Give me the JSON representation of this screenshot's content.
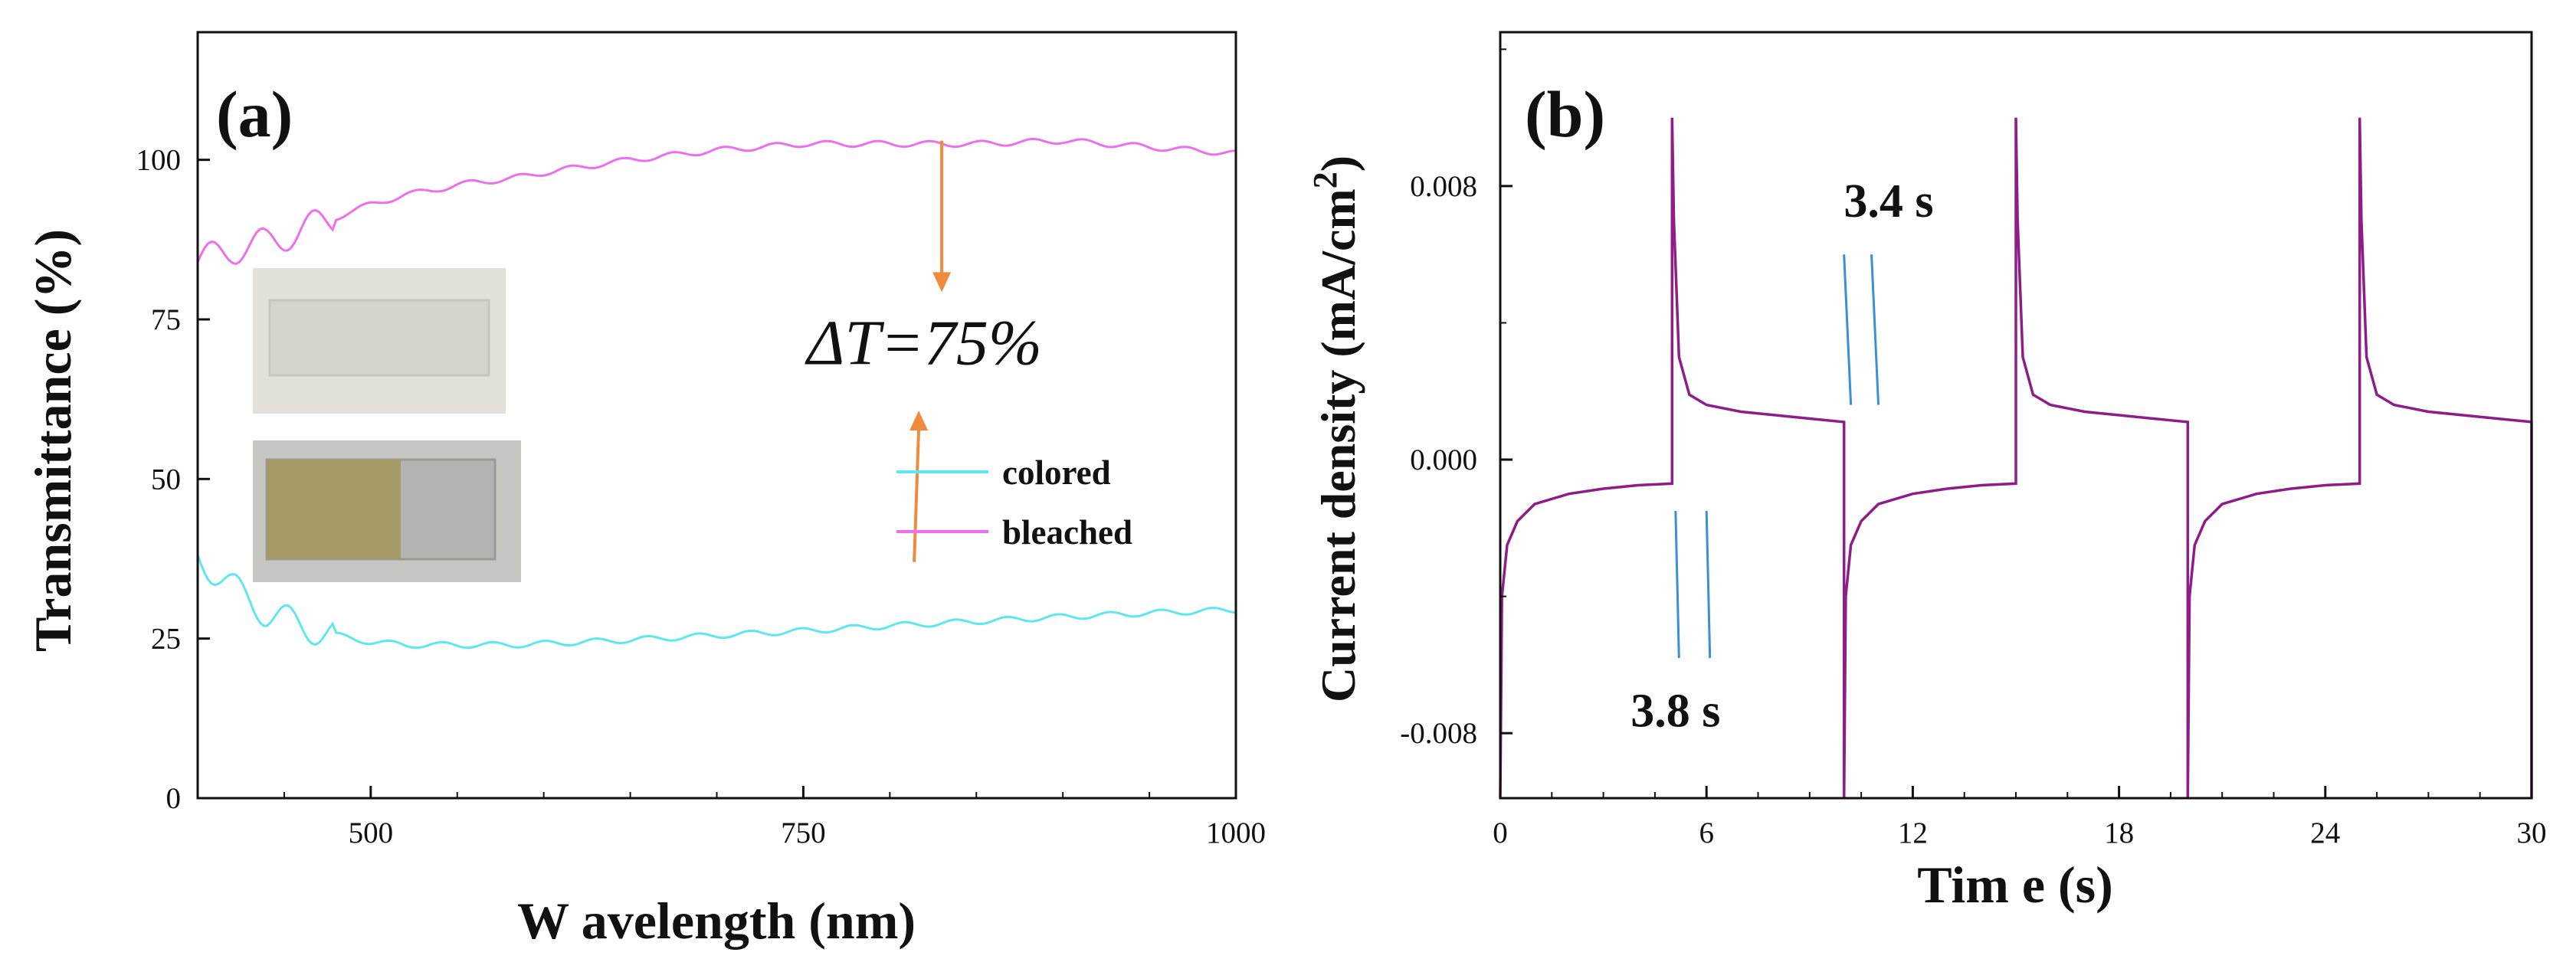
{
  "chart_data": [
    {
      "panel": "a",
      "type": "line",
      "panel_label": "(a)",
      "xlabel": "W avelength (nm)",
      "ylabel": "Transmittance (%)",
      "xlim": [
        400,
        1000
      ],
      "ylim": [
        0,
        120
      ],
      "xticks": [
        500,
        750,
        1000
      ],
      "yticks": [
        0,
        25,
        50,
        75,
        100
      ],
      "legend": {
        "position": "center-right",
        "entries": [
          "colored",
          "bleached"
        ]
      },
      "series": [
        {
          "name": "bleached",
          "color": "#ee6fee",
          "x": [
            400,
            420,
            440,
            460,
            480,
            500,
            520,
            540,
            560,
            580,
            600,
            650,
            700,
            750,
            800,
            850,
            900,
            950,
            1000
          ],
          "y": [
            84,
            86,
            87,
            89,
            91,
            93,
            94.5,
            95.5,
            96.5,
            97,
            98,
            100,
            101.5,
            102.5,
            102.5,
            102.5,
            103,
            102,
            101
          ]
        },
        {
          "name": "colored",
          "color": "#5ee8ee",
          "x": [
            400,
            420,
            440,
            460,
            480,
            500,
            520,
            540,
            560,
            580,
            600,
            650,
            700,
            750,
            800,
            850,
            900,
            950,
            1000
          ],
          "y": [
            38,
            33,
            29,
            27,
            25.5,
            24.5,
            24,
            24,
            24,
            24,
            24.2,
            24.8,
            25.5,
            26.2,
            27,
            27.7,
            28.4,
            29,
            29.5
          ]
        }
      ],
      "annotations": [
        {
          "text": "ΔT=75%",
          "x": 820,
          "y": 68
        },
        {
          "arrow": "down",
          "color": "#f08a3c",
          "x": 830,
          "from_y": 103,
          "to_y": 80
        },
        {
          "arrow": "up",
          "color": "#f08a3c",
          "x": 830,
          "from_y": 37,
          "to_y": 60
        }
      ],
      "insets": [
        {
          "name": "bleached-film-photo",
          "color": "#ddd9d0"
        },
        {
          "name": "colored-film-photo",
          "color": "#a59a66"
        }
      ]
    },
    {
      "panel": "b",
      "type": "line",
      "panel_label": "(b)",
      "xlabel": "Tim e (s)",
      "ylabel": "Current density (mA/cm",
      "ylabel_sup": "2",
      "ylabel_close": ")",
      "xlim": [
        0,
        30
      ],
      "ylim": [
        -0.0099,
        0.0125
      ],
      "xticks": [
        0,
        6,
        12,
        18,
        24,
        30
      ],
      "yticks": [
        -0.008,
        0.0,
        0.008
      ],
      "ytick_labels": [
        "-0.008",
        "0.000",
        "0.008"
      ],
      "series": [
        {
          "name": "current density",
          "color": "#8e1d8a",
          "x": [
            0,
            0.05,
            0.2,
            0.5,
            1,
            2,
            3,
            4,
            5,
            5,
            5.05,
            5.2,
            5.5,
            6,
            7,
            8,
            9,
            10,
            10,
            10.05,
            10.2,
            10.5,
            11,
            12,
            13,
            14,
            15,
            15,
            15.05,
            15.2,
            15.5,
            16,
            17,
            18,
            19,
            20,
            20,
            20.05,
            20.2,
            20.5,
            21,
            22,
            23,
            24,
            25,
            25,
            25.05,
            25.2,
            25.5,
            26,
            27,
            28,
            29,
            30,
            30
          ],
          "y": [
            -0.0099,
            -0.004,
            -0.0025,
            -0.0018,
            -0.0013,
            -0.001,
            -0.00085,
            -0.00075,
            -0.0007,
            0.01,
            0.007,
            0.003,
            0.0019,
            0.0016,
            0.0014,
            0.0013,
            0.0012,
            0.0011,
            -0.0099,
            -0.004,
            -0.0025,
            -0.0018,
            -0.0013,
            -0.001,
            -0.00085,
            -0.00075,
            -0.0007,
            0.01,
            0.007,
            0.003,
            0.0019,
            0.0016,
            0.0014,
            0.0013,
            0.0012,
            0.0011,
            -0.0099,
            -0.004,
            -0.0025,
            -0.0018,
            -0.0013,
            -0.001,
            -0.00085,
            -0.00075,
            -0.0007,
            0.01,
            0.007,
            0.003,
            0.0019,
            0.0016,
            0.0014,
            0.0013,
            0.0012,
            0.0011,
            -0.0099
          ]
        }
      ],
      "annotations": [
        {
          "text": "3.4 s",
          "x": 11.3,
          "y": 0.0071
        },
        {
          "text": "3.8 s",
          "x": 5.1,
          "y": -0.0078
        },
        {
          "marker": "3.4 s",
          "color": "#3a8fd6",
          "pairs": [
            [
              10.0,
              10.2
            ],
            [
              10.8,
              11.0
            ]
          ],
          "y_top": 0.006,
          "y_bottom": 0.0016
        },
        {
          "marker": "3.8 s",
          "color": "#3a8fd6",
          "pairs": [
            [
              5.1,
              5.2
            ],
            [
              6.0,
              6.1
            ]
          ],
          "y_top": -0.0015,
          "y_bottom": -0.0058
        }
      ]
    }
  ]
}
